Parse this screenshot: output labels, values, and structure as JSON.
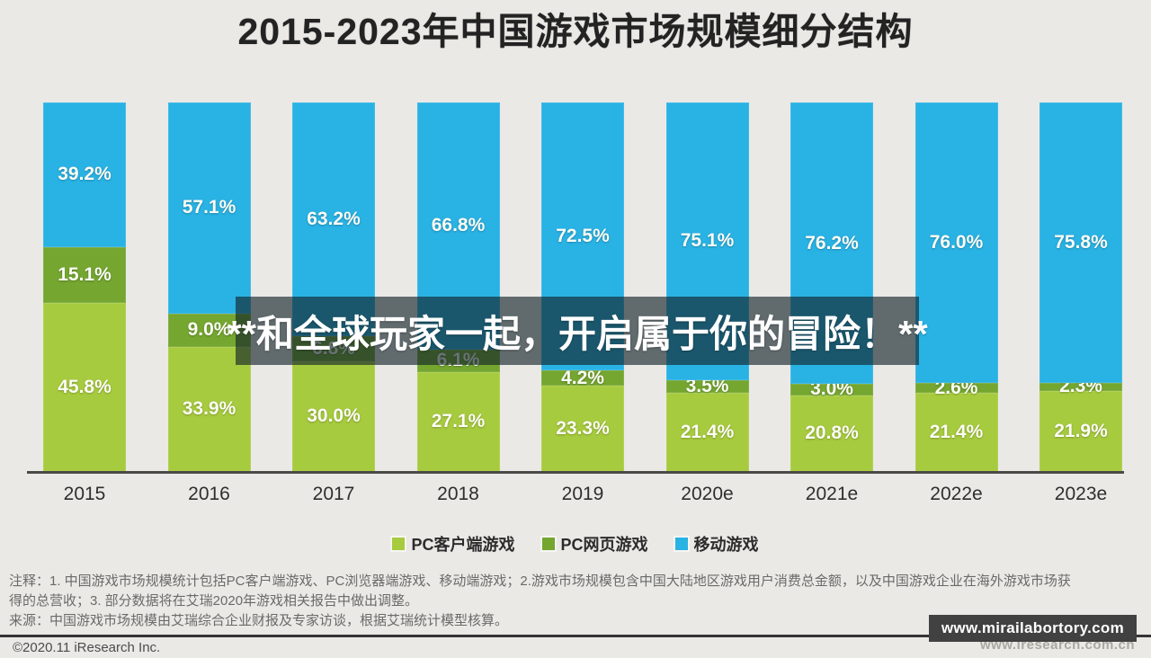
{
  "title": "2015-2023年中国游戏市场规模细分结构",
  "watermark_overlay": {
    "text": "**和全球玩家一起，开启属于你的冒险！**"
  },
  "chart_data": {
    "type": "bar",
    "stacked": true,
    "unit": "%",
    "title": "2015-2023年中国游戏市场规模细分结构",
    "categories": [
      "2015",
      "2016",
      "2017",
      "2018",
      "2019",
      "2020e",
      "2021e",
      "2022e",
      "2023e"
    ],
    "series": [
      {
        "name": "PC客户端游戏",
        "color": "#a7cb3e",
        "values": [
          45.8,
          33.9,
          30.0,
          27.1,
          23.3,
          21.4,
          20.8,
          21.4,
          21.9
        ]
      },
      {
        "name": "PC网页游戏",
        "color": "#74a630",
        "values": [
          15.1,
          9.0,
          6.8,
          6.1,
          4.2,
          3.5,
          3.0,
          2.6,
          2.3
        ]
      },
      {
        "name": "移动游戏",
        "color": "#29b2e4",
        "values": [
          39.2,
          57.1,
          63.2,
          66.8,
          72.5,
          75.1,
          76.2,
          76.0,
          75.8
        ]
      }
    ],
    "ylim": [
      0,
      100
    ],
    "grid": false,
    "legend_position": "bottom",
    "value_label_format": "0.0%"
  },
  "notes": [
    "注释：1. 中国游戏市场规模统计包括PC客户端游戏、PC浏览器端游戏、移动端游戏；2.游戏市场规模包含中国大陆地区游戏用户消费总金额，以及中国游戏企业在海外游戏市场获",
    "得的总营收；3. 部分数据将在艾瑞2020年游戏相关报告中做出调整。",
    "来源：中国游戏市场规模由艾瑞综合企业财报及专家访谈，根据艾瑞统计模型核算。"
  ],
  "footer": {
    "copyright": "©2020.11 iResearch Inc.",
    "site_url": "www.iresearch.com.cn",
    "badge": "www.mirailabortory.com"
  }
}
